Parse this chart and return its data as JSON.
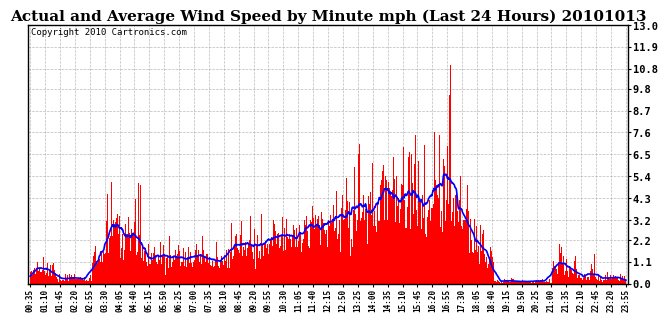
{
  "title": "Actual and Average Wind Speed by Minute mph (Last 24 Hours) 20101013",
  "copyright": "Copyright 2010 Cartronics.com",
  "yticks": [
    0.0,
    1.1,
    2.2,
    3.2,
    4.3,
    5.4,
    6.5,
    7.6,
    8.7,
    9.8,
    10.8,
    11.9,
    13.0
  ],
  "ylim": [
    0.0,
    13.0
  ],
  "xtick_labels": [
    "00:35",
    "01:10",
    "01:45",
    "02:20",
    "02:55",
    "03:30",
    "04:05",
    "04:40",
    "05:15",
    "05:50",
    "06:25",
    "07:00",
    "07:35",
    "08:10",
    "08:45",
    "09:20",
    "09:55",
    "10:30",
    "11:05",
    "11:40",
    "12:15",
    "12:50",
    "13:25",
    "14:00",
    "14:35",
    "15:10",
    "15:45",
    "16:20",
    "16:55",
    "17:30",
    "18:05",
    "18:40",
    "19:15",
    "19:50",
    "20:25",
    "21:00",
    "21:35",
    "22:10",
    "22:45",
    "23:20",
    "23:55"
  ],
  "bar_color": "#FF0000",
  "line_color": "#0000FF",
  "background_color": "#FFFFFF",
  "grid_color": "#AAAAAA",
  "title_fontsize": 11,
  "copyright_fontsize": 6.5
}
